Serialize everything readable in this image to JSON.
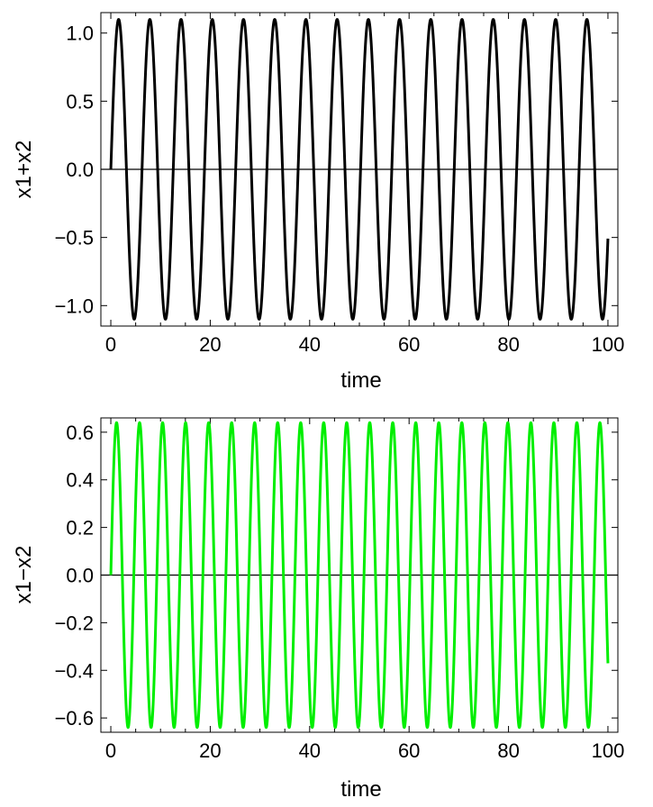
{
  "chart_data": [
    {
      "type": "line",
      "xlabel": "time",
      "ylabel": "x1+x2",
      "xlim": [
        -2,
        102
      ],
      "ylim": [
        -1.15,
        1.15
      ],
      "x_ticks": [
        0,
        20,
        40,
        60,
        80,
        100
      ],
      "x_tick_labels": [
        "0",
        "20",
        "40",
        "60",
        "80",
        "100"
      ],
      "y_ticks": [
        1.0,
        0.5,
        0.0,
        -0.5,
        -1.0
      ],
      "y_tick_labels": [
        "1.0",
        "0.5",
        "0.0",
        "−0.5",
        "−1.0"
      ],
      "series": [
        {
          "function": "sine",
          "amplitude": 1.1,
          "period": 6.28,
          "x_start": 0,
          "x_end": 100,
          "color": "#000000"
        }
      ],
      "zero_line": true,
      "grid": false
    },
    {
      "type": "line",
      "xlabel": "time",
      "ylabel": "x1−x2",
      "xlim": [
        -2,
        102
      ],
      "ylim": [
        -0.66,
        0.66
      ],
      "x_ticks": [
        0,
        20,
        40,
        60,
        80,
        100
      ],
      "x_tick_labels": [
        "0",
        "20",
        "40",
        "60",
        "80",
        "100"
      ],
      "y_ticks": [
        0.6,
        0.4,
        0.2,
        0.0,
        -0.2,
        -0.4,
        -0.6
      ],
      "y_tick_labels": [
        "0.6",
        "0.4",
        "0.2",
        "0.0",
        "−0.2",
        "−0.4",
        "−0.6"
      ],
      "series": [
        {
          "function": "sine",
          "amplitude": 0.64,
          "period": 4.63,
          "x_start": 0,
          "x_end": 100,
          "color": "#00ee00"
        }
      ],
      "zero_line": true,
      "grid": false
    }
  ]
}
